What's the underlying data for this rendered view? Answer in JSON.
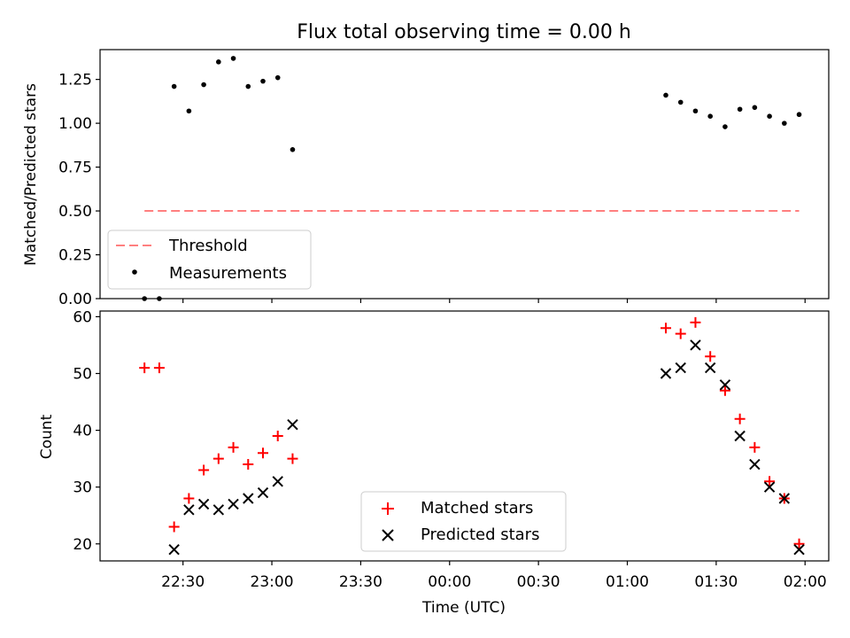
{
  "chart_data": [
    {
      "type": "scatter",
      "title": "Flux total observing time = 0.00 h",
      "xlabel": "",
      "ylabel": "Matched/Predicted stars",
      "ylim": [
        0,
        1.42
      ],
      "yticks": [
        "0.00",
        "0.25",
        "0.50",
        "0.75",
        "1.00",
        "1.25"
      ],
      "ytick_values": [
        0,
        0.25,
        0.5,
        0.75,
        1.0,
        1.25
      ],
      "xlim": [
        "22:02",
        "02:08"
      ],
      "legend_position": "lower-left",
      "grid": false,
      "series": [
        {
          "name": "Threshold",
          "style": "dashed-line",
          "color": "#ff7f7f",
          "x": [
            "22:17",
            "01:58"
          ],
          "y": [
            0.5,
            0.5
          ]
        },
        {
          "name": "Measurements",
          "style": "dot",
          "color": "#000000",
          "x": [
            "22:17",
            "22:22",
            "22:27",
            "22:32",
            "22:37",
            "22:42",
            "22:47",
            "22:52",
            "22:57",
            "23:02",
            "23:07",
            "01:13",
            "01:18",
            "01:23",
            "01:28",
            "01:33",
            "01:38",
            "01:43",
            "01:48",
            "01:53",
            "01:58"
          ],
          "y": [
            0.0,
            0.0,
            1.21,
            1.07,
            1.22,
            1.35,
            1.37,
            1.21,
            1.24,
            1.26,
            0.85,
            1.16,
            1.12,
            1.07,
            1.04,
            0.98,
            1.08,
            1.09,
            1.04,
            1.0,
            1.05
          ]
        }
      ]
    },
    {
      "type": "scatter",
      "title": "",
      "xlabel": "Time (UTC)",
      "ylabel": "Count",
      "ylim": [
        17,
        61
      ],
      "yticks": [
        "20",
        "30",
        "40",
        "50",
        "60"
      ],
      "ytick_values": [
        20,
        30,
        40,
        50,
        60
      ],
      "xlim": [
        "22:02",
        "02:08"
      ],
      "xticks": [
        "22:30",
        "23:00",
        "23:30",
        "00:00",
        "00:30",
        "01:00",
        "01:30",
        "02:00"
      ],
      "legend_position": "lower-center",
      "grid": false,
      "series": [
        {
          "name": "Matched stars",
          "style": "plus",
          "color": "#ff0000",
          "x": [
            "22:17",
            "22:22",
            "22:27",
            "22:32",
            "22:37",
            "22:42",
            "22:47",
            "22:52",
            "22:57",
            "23:02",
            "23:07",
            "01:13",
            "01:18",
            "01:23",
            "01:28",
            "01:33",
            "01:38",
            "01:43",
            "01:48",
            "01:53",
            "01:58"
          ],
          "y": [
            51,
            51,
            23,
            28,
            33,
            35,
            37,
            34,
            36,
            39,
            35,
            58,
            57,
            59,
            53,
            47,
            42,
            37,
            31,
            28,
            20
          ]
        },
        {
          "name": "Predicted stars",
          "style": "x",
          "color": "#000000",
          "x": [
            "22:27",
            "22:32",
            "22:37",
            "22:42",
            "22:47",
            "22:52",
            "22:57",
            "23:02",
            "23:07",
            "01:13",
            "01:18",
            "01:23",
            "01:28",
            "01:33",
            "01:38",
            "01:43",
            "01:48",
            "01:53",
            "01:58"
          ],
          "y": [
            19,
            26,
            27,
            26,
            27,
            28,
            29,
            31,
            41,
            50,
            51,
            55,
            51,
            48,
            39,
            34,
            30,
            28,
            19
          ]
        }
      ]
    }
  ]
}
